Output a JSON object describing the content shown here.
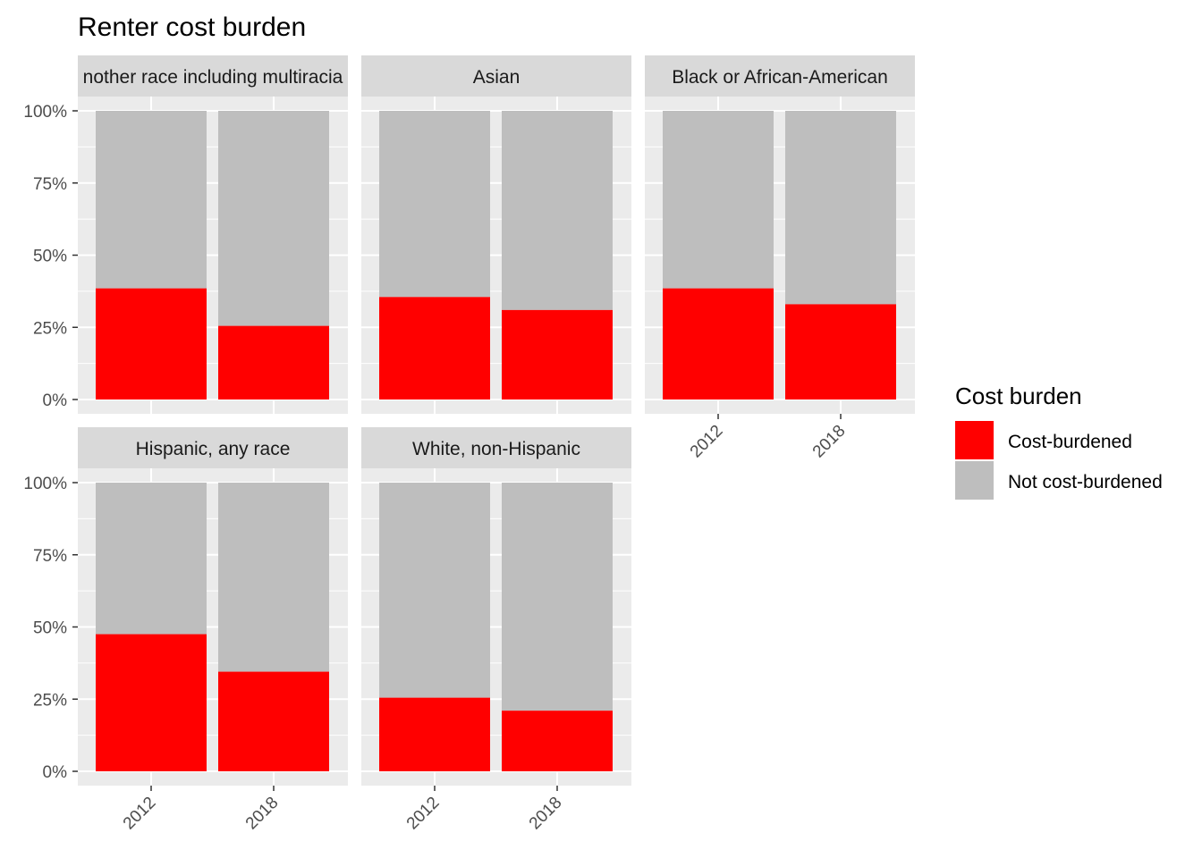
{
  "chart_data": {
    "type": "bar",
    "stacked": true,
    "title": "Renter cost burden",
    "xlabel": "",
    "ylabel": "",
    "ylim": [
      0,
      1
    ],
    "y_ticks": [
      "0%",
      "25%",
      "50%",
      "75%",
      "100%"
    ],
    "categories": [
      "2012",
      "2018"
    ],
    "legend": {
      "title": "Cost burden",
      "position": "right",
      "entries": [
        {
          "label": "Cost-burdened",
          "color": "#FF0000"
        },
        {
          "label": "Not cost-burdened",
          "color": "#BEBEBE"
        }
      ]
    },
    "facets": [
      {
        "label": "Another race including multiracial",
        "strip_display": "nother race including multiracia",
        "cost_burdened": [
          0.385,
          0.255
        ]
      },
      {
        "label": "Asian",
        "strip_display": "Asian",
        "cost_burdened": [
          0.355,
          0.31
        ]
      },
      {
        "label": "Black or African-American",
        "strip_display": "Black or African-American",
        "cost_burdened": [
          0.385,
          0.33
        ]
      },
      {
        "label": "Hispanic, any race",
        "strip_display": "Hispanic, any race",
        "cost_burdened": [
          0.475,
          0.345
        ]
      },
      {
        "label": "White, non-Hispanic",
        "strip_display": "White, non-Hispanic",
        "cost_burdened": [
          0.255,
          0.21
        ]
      }
    ]
  }
}
